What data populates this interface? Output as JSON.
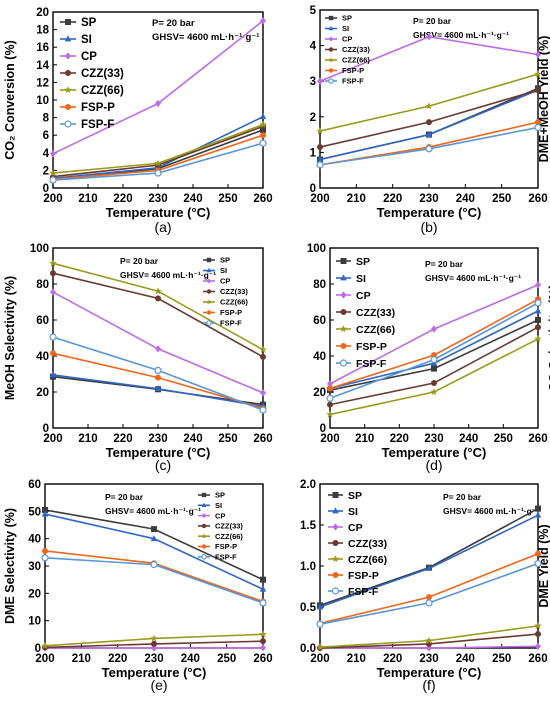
{
  "figure": {
    "colors": {
      "SP": "#3c3c3c",
      "SI": "#2f66c8",
      "CP": "#bf6ae6",
      "CZZ(33)": "#6a3a32",
      "CZZ(66)": "#9a9a1c",
      "FSP-P": "#f0661a",
      "FSP-F": "#5a96d6"
    },
    "markers": {
      "SP": "square",
      "SI": "triangle",
      "CP": "diamond",
      "CZZ(33)": "circle",
      "CZZ(66)": "star",
      "FSP-P": "circle",
      "FSP-F": "circle-open"
    }
  },
  "chart_data": [
    {
      "panel": "(a)",
      "type": "line",
      "xlabel": "Temperature (°C)",
      "ylabel": "CO₂ Conversion (%)",
      "xlim": [
        200,
        260
      ],
      "ylim": [
        0,
        20
      ],
      "xticks": [
        "200",
        "210",
        "220",
        "230",
        "240",
        "250",
        "260"
      ],
      "yticks": [
        "0",
        "2",
        "4",
        "6",
        "8",
        "10",
        "12",
        "14",
        "16",
        "18",
        "20"
      ],
      "annotations": [
        "P= 20 bar",
        "GHSV= 4600 mL·h⁻¹·g⁻¹"
      ],
      "legend_position": "top-left",
      "x": [
        200,
        230,
        260
      ],
      "series": [
        {
          "name": "SP",
          "values": [
            1.0,
            2.2,
            6.6
          ]
        },
        {
          "name": "SI",
          "values": [
            1.1,
            2.3,
            8.1
          ]
        },
        {
          "name": "CP",
          "values": [
            3.9,
            9.6,
            19.0
          ]
        },
        {
          "name": "CZZ(33)",
          "values": [
            1.3,
            2.6,
            7.0
          ]
        },
        {
          "name": "CZZ(66)",
          "values": [
            1.7,
            2.8,
            7.2
          ]
        },
        {
          "name": "FSP-P",
          "values": [
            1.0,
            2.0,
            6.0
          ]
        },
        {
          "name": "FSP-F",
          "values": [
            0.9,
            1.7,
            5.1
          ]
        }
      ]
    },
    {
      "panel": "(b)",
      "type": "line",
      "xlabel": "Temperature (°C)",
      "ylabel": "DME+MeOH Yield (%)",
      "xlim": [
        200,
        260
      ],
      "ylim": [
        0,
        5
      ],
      "xticks": [
        "200",
        "210",
        "220",
        "230",
        "240",
        "250",
        "260"
      ],
      "yticks": [
        "0",
        "1",
        "2",
        "3",
        "4",
        "5"
      ],
      "annotations": [
        "P= 20 bar",
        "GHSV= 4600 mL·h⁻¹·g⁻¹"
      ],
      "legend_position": "top-left",
      "x": [
        200,
        230,
        260
      ],
      "series": [
        {
          "name": "SP",
          "values": [
            0.8,
            1.5,
            2.8
          ]
        },
        {
          "name": "SI",
          "values": [
            0.8,
            1.5,
            2.75
          ]
        },
        {
          "name": "CP",
          "values": [
            3.0,
            4.25,
            3.75
          ]
        },
        {
          "name": "CZZ(33)",
          "values": [
            1.15,
            1.85,
            2.75
          ]
        },
        {
          "name": "CZZ(66)",
          "values": [
            1.6,
            2.3,
            3.2
          ]
        },
        {
          "name": "FSP-P",
          "values": [
            0.65,
            1.15,
            1.85
          ]
        },
        {
          "name": "FSP-F",
          "values": [
            0.65,
            1.1,
            1.7
          ]
        }
      ]
    },
    {
      "panel": "(c)",
      "type": "line",
      "xlabel": "Temperature (°C)",
      "ylabel": "MeOH Selectivity (%)",
      "xlim": [
        200,
        260
      ],
      "ylim": [
        0,
        100
      ],
      "xticks": [
        "200",
        "210",
        "220",
        "230",
        "240",
        "250",
        "260"
      ],
      "yticks": [
        "0",
        "20",
        "40",
        "60",
        "80",
        "100"
      ],
      "annotations": [
        "P= 20 bar",
        "GHSV= 4600 mL·h⁻¹·g⁻¹"
      ],
      "legend_position": "top-right",
      "x": [
        200,
        230,
        260
      ],
      "series": [
        {
          "name": "SP",
          "values": [
            28.5,
            21.5,
            13.0
          ]
        },
        {
          "name": "SI",
          "values": [
            29.5,
            21.8,
            12.0
          ]
        },
        {
          "name": "CP",
          "values": [
            75.5,
            44.0,
            19.5
          ]
        },
        {
          "name": "CZZ(33)",
          "values": [
            86.0,
            72.0,
            39.5
          ]
        },
        {
          "name": "CZZ(66)",
          "values": [
            91.5,
            76.0,
            43.5
          ]
        },
        {
          "name": "FSP-P",
          "values": [
            41.5,
            28.0,
            11.0
          ]
        },
        {
          "name": "FSP-F",
          "values": [
            50.5,
            32.0,
            10.0
          ]
        }
      ]
    },
    {
      "panel": "(d)",
      "type": "line",
      "xlabel": "Temperature (°C)",
      "ylabel": "CO Selectivity (%)",
      "xlim": [
        200,
        260
      ],
      "ylim": [
        0,
        100
      ],
      "xticks": [
        "200",
        "210",
        "220",
        "230",
        "240",
        "250",
        "260"
      ],
      "yticks": [
        "0",
        "20",
        "40",
        "60",
        "80",
        "100"
      ],
      "annotations": [
        "P= 20 bar",
        "GHSV= 4600 mL·h⁻¹·g⁻¹"
      ],
      "legend_position": "top-left",
      "x": [
        200,
        230,
        260
      ],
      "series": [
        {
          "name": "SP",
          "values": [
            21.0,
            33.0,
            60.0
          ]
        },
        {
          "name": "SI",
          "values": [
            22.0,
            36.0,
            65.0
          ]
        },
        {
          "name": "CP",
          "values": [
            24.5,
            55.0,
            79.5
          ]
        },
        {
          "name": "CZZ(33)",
          "values": [
            13.0,
            25.0,
            56.0
          ]
        },
        {
          "name": "CZZ(66)",
          "values": [
            7.5,
            20.0,
            49.5
          ]
        },
        {
          "name": "FSP-P",
          "values": [
            22.0,
            40.5,
            71.5
          ]
        },
        {
          "name": "FSP-F",
          "values": [
            16.5,
            38.0,
            69.5
          ]
        }
      ]
    },
    {
      "panel": "(e)",
      "type": "line",
      "xlabel": "Temperature (°C)",
      "ylabel": "DME Selectivity (%)",
      "xlim": [
        200,
        260
      ],
      "ylim": [
        0,
        60
      ],
      "xticks": [
        "200",
        "210",
        "220",
        "230",
        "240",
        "250",
        "260"
      ],
      "yticks": [
        "0",
        "10",
        "20",
        "30",
        "40",
        "50",
        "60"
      ],
      "annotations": [
        "P= 20 bar",
        "GHSV= 4600 mL·h⁻¹·g⁻¹"
      ],
      "legend_position": "top-right",
      "x": [
        200,
        230,
        260
      ],
      "series": [
        {
          "name": "SP",
          "values": [
            50.5,
            43.5,
            25.0
          ]
        },
        {
          "name": "SI",
          "values": [
            49.0,
            40.0,
            21.5
          ]
        },
        {
          "name": "CP",
          "values": [
            0.0,
            0.0,
            0.1
          ]
        },
        {
          "name": "CZZ(33)",
          "values": [
            0.2,
            1.5,
            2.5
          ]
        },
        {
          "name": "CZZ(66)",
          "values": [
            0.8,
            3.5,
            5.0
          ]
        },
        {
          "name": "FSP-P",
          "values": [
            35.5,
            31.0,
            17.0
          ]
        },
        {
          "name": "FSP-F",
          "values": [
            33.0,
            30.5,
            16.5
          ]
        }
      ]
    },
    {
      "panel": "(f)",
      "type": "line",
      "xlabel": "Temperature (°C)",
      "ylabel": "DME Yield (%)",
      "xlim": [
        200,
        260
      ],
      "ylim": [
        0,
        2.0
      ],
      "xticks": [
        "200",
        "210",
        "220",
        "230",
        "240",
        "250",
        "260"
      ],
      "yticks": [
        "0.0",
        "0.5",
        "1.0",
        "1.5",
        "2.0"
      ],
      "annotations": [
        "P= 20 bar",
        "GHSV= 4600 mL·h⁻¹·g⁻¹"
      ],
      "legend_position": "top-left",
      "x": [
        200,
        230,
        260
      ],
      "series": [
        {
          "name": "SP",
          "values": [
            0.52,
            0.98,
            1.7
          ]
        },
        {
          "name": "SI",
          "values": [
            0.5,
            0.97,
            1.62
          ]
        },
        {
          "name": "CP",
          "values": [
            0.0,
            0.0,
            0.02
          ]
        },
        {
          "name": "CZZ(33)",
          "values": [
            0.0,
            0.05,
            0.17
          ]
        },
        {
          "name": "CZZ(66)",
          "values": [
            0.01,
            0.09,
            0.27
          ]
        },
        {
          "name": "FSP-P",
          "values": [
            0.3,
            0.62,
            1.15
          ]
        },
        {
          "name": "FSP-F",
          "values": [
            0.29,
            0.55,
            1.03
          ]
        }
      ]
    }
  ]
}
